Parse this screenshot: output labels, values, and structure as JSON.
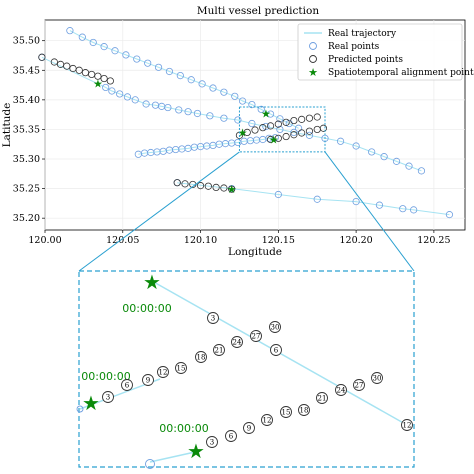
{
  "chart_data": {
    "type": "scatter",
    "title": "Multi vessel prediction",
    "xlabel": "Longitude",
    "ylabel": "Latitude",
    "xlim": [
      120.0,
      120.27
    ],
    "ylim": [
      35.18,
      35.535
    ],
    "xticks": [
      "120.00",
      "120.05",
      "120.10",
      "120.15",
      "120.20",
      "120.25"
    ],
    "yticks": [
      "35.20",
      "35.25",
      "35.30",
      "35.35",
      "35.40",
      "35.45",
      "35.50"
    ],
    "grid": true,
    "legend_position": "top-right",
    "legend": [
      "Real trajectory",
      "Real points",
      "Predicted points",
      "Spatiotemporal alignment point"
    ],
    "colors": {
      "real_trajectory": "#a6e3f2",
      "real_points": "#6f9fe0",
      "predicted_points": "#333333",
      "alignment_point": "#0a8a0a",
      "zoom_box": "#2aa0d0"
    },
    "real_tracks": [
      [
        [
          120.016,
          35.517
        ],
        [
          120.024,
          35.506
        ],
        [
          120.031,
          35.497
        ],
        [
          120.038,
          35.49
        ],
        [
          120.045,
          35.483
        ],
        [
          120.052,
          35.476
        ],
        [
          120.059,
          35.469
        ],
        [
          120.066,
          35.462
        ],
        [
          120.073,
          35.455
        ],
        [
          120.08,
          35.448
        ],
        [
          120.087,
          35.441
        ],
        [
          120.094,
          35.434
        ],
        [
          120.101,
          35.427
        ],
        [
          120.108,
          35.42
        ],
        [
          120.115,
          35.413
        ],
        [
          120.122,
          35.406
        ],
        [
          120.127,
          35.398
        ],
        [
          120.133,
          35.392
        ],
        [
          120.139,
          35.384
        ],
        [
          120.145,
          35.376
        ],
        [
          120.151,
          35.368
        ],
        [
          120.157,
          35.36
        ],
        [
          120.163,
          35.352
        ]
      ],
      [
        [
          119.998,
          35.472
        ],
        [
          120.039,
          35.421
        ],
        [
          120.043,
          35.415
        ],
        [
          120.048,
          35.41
        ],
        [
          120.053,
          35.405
        ],
        [
          120.058,
          35.4
        ],
        [
          120.065,
          35.393
        ],
        [
          120.071,
          35.391
        ],
        [
          120.075,
          35.389
        ],
        [
          120.079,
          35.387
        ],
        [
          120.086,
          35.383
        ],
        [
          120.092,
          35.38
        ],
        [
          120.098,
          35.377
        ],
        [
          120.106,
          35.373
        ],
        [
          120.115,
          35.369
        ],
        [
          120.124,
          35.366
        ],
        [
          120.133,
          35.36
        ],
        [
          120.142,
          35.355
        ],
        [
          120.151,
          35.35
        ],
        [
          120.16,
          35.345
        ],
        [
          120.17,
          35.34
        ],
        [
          120.18,
          35.335
        ],
        [
          120.19,
          35.33
        ],
        [
          120.2,
          35.322
        ],
        [
          120.21,
          35.312
        ],
        [
          120.218,
          35.304
        ],
        [
          120.226,
          35.296
        ],
        [
          120.234,
          35.288
        ],
        [
          120.242,
          35.28
        ]
      ],
      [
        [
          120.06,
          35.308
        ],
        [
          120.064,
          35.31
        ],
        [
          120.068,
          35.311
        ],
        [
          120.072,
          35.312
        ],
        [
          120.076,
          35.313
        ],
        [
          120.08,
          35.315
        ],
        [
          120.084,
          35.316
        ],
        [
          120.088,
          35.317
        ],
        [
          120.092,
          35.318
        ],
        [
          120.096,
          35.32
        ],
        [
          120.1,
          35.321
        ],
        [
          120.104,
          35.322
        ],
        [
          120.108,
          35.323
        ],
        [
          120.112,
          35.325
        ],
        [
          120.116,
          35.326
        ],
        [
          120.12,
          35.327
        ],
        [
          120.124,
          35.328
        ],
        [
          120.128,
          35.33
        ],
        [
          120.132,
          35.331
        ],
        [
          120.136,
          35.332
        ],
        [
          120.14,
          35.333
        ],
        [
          120.144,
          35.335
        ],
        [
          120.148,
          35.336
        ]
      ],
      [
        [
          120.085,
          35.26
        ],
        [
          120.12,
          35.25
        ],
        [
          120.15,
          35.24
        ],
        [
          120.175,
          35.232
        ],
        [
          120.2,
          35.228
        ],
        [
          120.215,
          35.222
        ],
        [
          120.23,
          35.216
        ],
        [
          120.237,
          35.214
        ],
        [
          120.26,
          35.206
        ]
      ]
    ],
    "predicted_tracks": [
      [
        [
          119.998,
          35.472
        ],
        [
          120.006,
          35.464
        ],
        [
          120.01,
          35.46
        ],
        [
          120.014,
          35.457
        ],
        [
          120.018,
          35.453
        ],
        [
          120.022,
          35.45
        ],
        [
          120.026,
          35.446
        ],
        [
          120.03,
          35.443
        ],
        [
          120.034,
          35.44
        ],
        [
          120.038,
          35.436
        ],
        [
          120.042,
          35.432
        ]
      ],
      [
        [
          120.125,
          35.34
        ],
        [
          120.13,
          35.345
        ],
        [
          120.135,
          35.349
        ],
        [
          120.14,
          35.353
        ],
        [
          120.145,
          35.356
        ],
        [
          120.15,
          35.359
        ],
        [
          120.155,
          35.362
        ],
        [
          120.16,
          35.365
        ],
        [
          120.165,
          35.367
        ],
        [
          120.17,
          35.369
        ],
        [
          120.175,
          35.371
        ]
      ],
      [
        [
          120.145,
          35.333
        ],
        [
          120.15,
          35.335
        ],
        [
          120.155,
          35.338
        ],
        [
          120.16,
          35.341
        ],
        [
          120.165,
          35.344
        ],
        [
          120.17,
          35.347
        ],
        [
          120.175,
          35.35
        ],
        [
          120.179,
          35.352
        ]
      ],
      [
        [
          120.085,
          35.26
        ],
        [
          120.09,
          35.258
        ],
        [
          120.095,
          35.257
        ],
        [
          120.1,
          35.255
        ],
        [
          120.105,
          35.254
        ],
        [
          120.11,
          35.252
        ],
        [
          120.115,
          35.251
        ],
        [
          120.12,
          35.249
        ]
      ]
    ],
    "alignment_points": [
      [
        120.034,
        35.428
      ],
      [
        120.142,
        35.377
      ],
      [
        120.127,
        35.345
      ],
      [
        120.147,
        35.333
      ],
      [
        120.12,
        35.249
      ]
    ],
    "zoom_region": {
      "xlim": [
        120.125,
        120.18
      ],
      "ylim": [
        35.312,
        35.388
      ],
      "time_labels": [
        "00:00:00",
        "00:00:00",
        "00:00:00"
      ],
      "upper_track_labels": [
        "3",
        "27",
        "30",
        "6",
        "12"
      ],
      "middle_track_labels": [
        "3",
        "6",
        "9",
        "12",
        "15",
        "18",
        "21",
        "24",
        "27",
        "30"
      ],
      "lower_track_labels": [
        "3",
        "6",
        "9",
        "12",
        "15",
        "18",
        "21",
        "24",
        "27",
        "30"
      ]
    }
  }
}
